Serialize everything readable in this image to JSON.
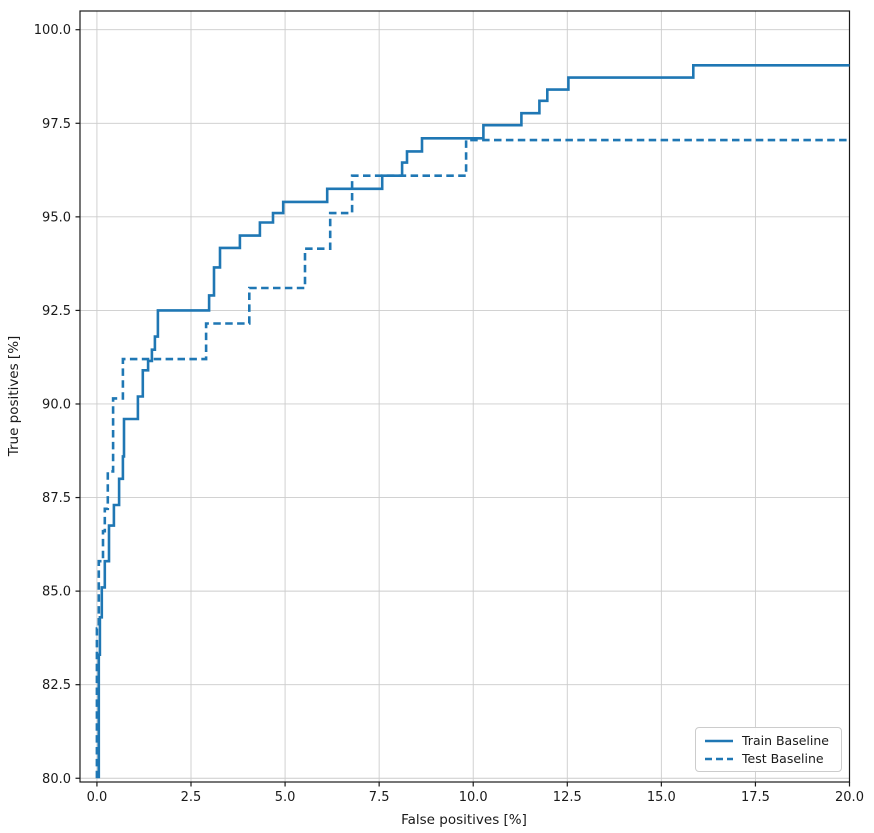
{
  "chart_data": {
    "type": "line",
    "subtype": "step-roc-curve",
    "title": "",
    "xlabel": "False positives [%]",
    "ylabel": "True positives [%]",
    "xlim": [
      -0.45,
      20.0
    ],
    "ylim": [
      79.9,
      100.5
    ],
    "xticks": [
      0.0,
      2.5,
      5.0,
      7.5,
      10.0,
      12.5,
      15.0,
      17.5,
      20.0
    ],
    "yticks": [
      80.0,
      82.5,
      85.0,
      87.5,
      90.0,
      92.5,
      95.0,
      97.5,
      100.0
    ],
    "grid": true,
    "grid_color": "#cccccc",
    "spine_color": "#1a1a1a",
    "line_color": "#1f77b4",
    "legend_position": "lower right",
    "series": [
      {
        "name": "Train Baseline",
        "style": "solid",
        "points": [
          [
            0.05,
            80.0
          ],
          [
            0.05,
            83.3
          ],
          [
            0.08,
            83.3
          ],
          [
            0.08,
            84.3
          ],
          [
            0.13,
            84.3
          ],
          [
            0.13,
            85.1
          ],
          [
            0.21,
            85.1
          ],
          [
            0.21,
            85.8
          ],
          [
            0.32,
            85.8
          ],
          [
            0.32,
            86.75
          ],
          [
            0.45,
            86.75
          ],
          [
            0.45,
            87.3
          ],
          [
            0.59,
            87.3
          ],
          [
            0.59,
            88.0
          ],
          [
            0.69,
            88.0
          ],
          [
            0.69,
            88.6
          ],
          [
            0.72,
            88.6
          ],
          [
            0.72,
            89.6
          ],
          [
            1.09,
            89.6
          ],
          [
            1.09,
            90.2
          ],
          [
            1.22,
            90.2
          ],
          [
            1.22,
            90.9
          ],
          [
            1.36,
            90.9
          ],
          [
            1.36,
            91.15
          ],
          [
            1.46,
            91.15
          ],
          [
            1.46,
            91.45
          ],
          [
            1.54,
            91.45
          ],
          [
            1.54,
            91.8
          ],
          [
            1.62,
            91.8
          ],
          [
            1.62,
            92.5
          ],
          [
            2.98,
            92.5
          ],
          [
            2.98,
            92.9
          ],
          [
            3.11,
            92.9
          ],
          [
            3.11,
            93.65
          ],
          [
            3.27,
            93.65
          ],
          [
            3.27,
            94.17
          ],
          [
            3.8,
            94.17
          ],
          [
            3.8,
            94.5
          ],
          [
            4.33,
            94.5
          ],
          [
            4.33,
            94.85
          ],
          [
            4.68,
            94.85
          ],
          [
            4.68,
            95.1
          ],
          [
            4.95,
            95.1
          ],
          [
            4.95,
            95.4
          ],
          [
            6.12,
            95.4
          ],
          [
            6.12,
            95.75
          ],
          [
            7.58,
            95.75
          ],
          [
            7.58,
            96.1
          ],
          [
            8.11,
            96.1
          ],
          [
            8.11,
            96.45
          ],
          [
            8.24,
            96.45
          ],
          [
            8.24,
            96.75
          ],
          [
            8.64,
            96.75
          ],
          [
            8.64,
            97.1
          ],
          [
            10.27,
            97.1
          ],
          [
            10.27,
            97.45
          ],
          [
            11.28,
            97.45
          ],
          [
            11.28,
            97.77
          ],
          [
            11.76,
            97.77
          ],
          [
            11.76,
            98.1
          ],
          [
            11.97,
            98.1
          ],
          [
            11.97,
            98.4
          ],
          [
            12.53,
            98.4
          ],
          [
            12.53,
            98.72
          ],
          [
            15.85,
            98.72
          ],
          [
            15.85,
            99.05
          ],
          [
            20.0,
            99.05
          ]
        ]
      },
      {
        "name": "Test Baseline",
        "style": "dashed",
        "points": [
          [
            0.0,
            80.0
          ],
          [
            0.0,
            84.0
          ],
          [
            0.05,
            84.0
          ],
          [
            0.05,
            85.8
          ],
          [
            0.16,
            85.8
          ],
          [
            0.16,
            86.6
          ],
          [
            0.21,
            86.6
          ],
          [
            0.21,
            87.2
          ],
          [
            0.29,
            87.2
          ],
          [
            0.29,
            88.2
          ],
          [
            0.43,
            88.2
          ],
          [
            0.43,
            90.15
          ],
          [
            0.69,
            90.15
          ],
          [
            0.69,
            91.2
          ],
          [
            2.9,
            91.2
          ],
          [
            2.9,
            92.15
          ],
          [
            4.05,
            92.15
          ],
          [
            4.05,
            93.1
          ],
          [
            5.53,
            93.1
          ],
          [
            5.53,
            94.15
          ],
          [
            6.2,
            94.15
          ],
          [
            6.2,
            95.1
          ],
          [
            6.78,
            95.1
          ],
          [
            6.78,
            96.1
          ],
          [
            9.81,
            96.1
          ],
          [
            9.81,
            97.05
          ],
          [
            20.0,
            97.05
          ]
        ]
      }
    ]
  },
  "legend": {
    "items": [
      {
        "label": "Train Baseline",
        "style": "solid"
      },
      {
        "label": "Test Baseline",
        "style": "dashed"
      }
    ]
  }
}
